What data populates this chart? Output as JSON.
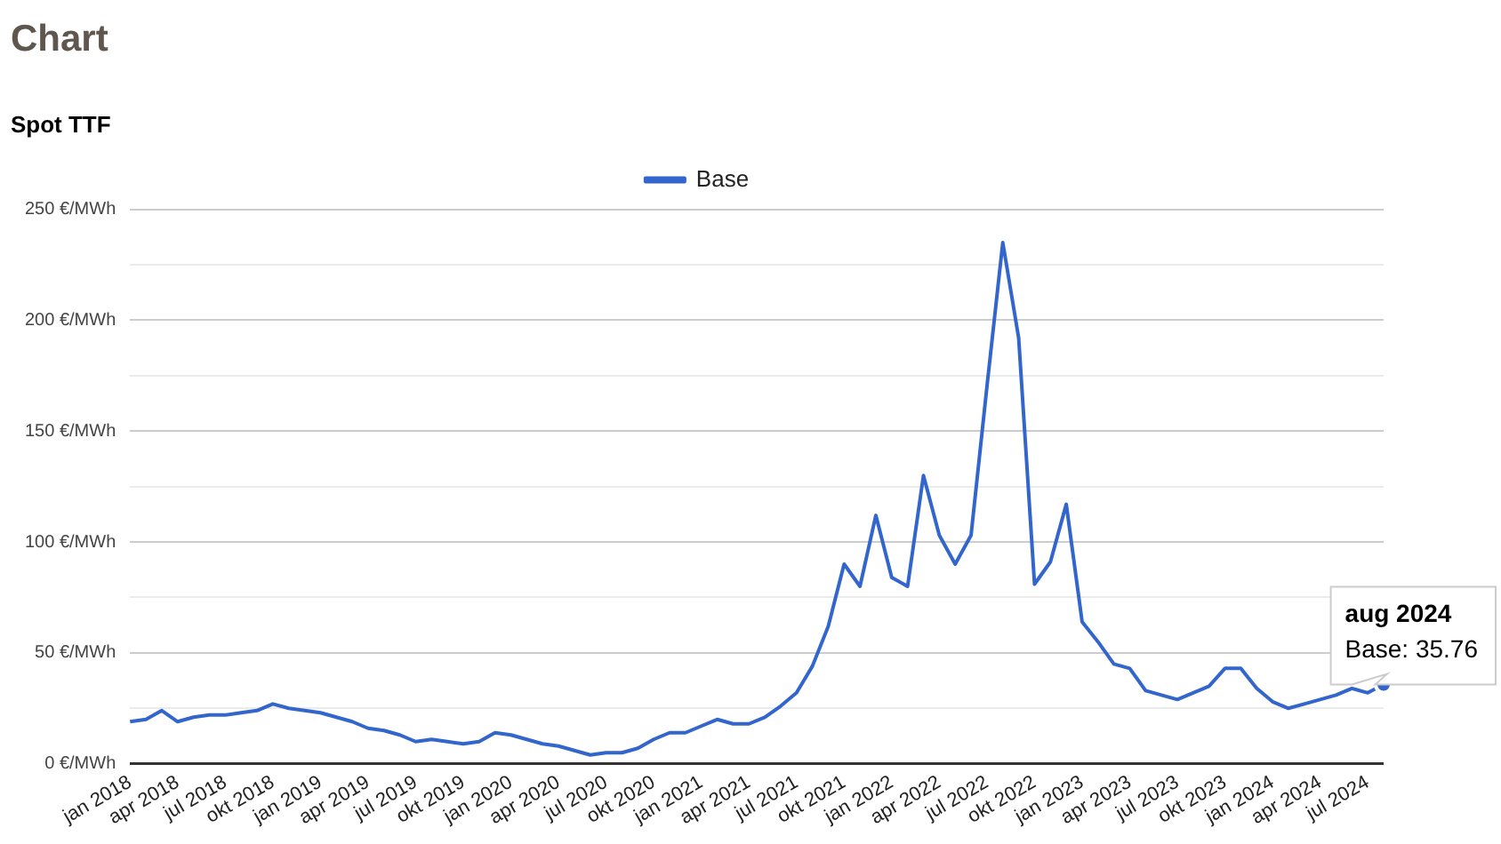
{
  "chart_data": {
    "type": "line",
    "title": "Chart",
    "subtitle": "Spot TTF",
    "categories": [
      "jan 2018",
      null,
      null,
      "apr 2018",
      null,
      null,
      "jul 2018",
      null,
      null,
      "okt 2018",
      null,
      null,
      "jan 2019",
      null,
      null,
      "apr 2019",
      null,
      null,
      "jul 2019",
      null,
      null,
      "okt 2019",
      null,
      null,
      "jan 2020",
      null,
      null,
      "apr 2020",
      null,
      null,
      "jul 2020",
      null,
      null,
      "okt 2020",
      null,
      null,
      "jan 2021",
      null,
      null,
      "apr 2021",
      null,
      null,
      "jul 2021",
      null,
      null,
      "okt 2021",
      null,
      null,
      "jan 2022",
      null,
      null,
      "apr 2022",
      null,
      null,
      "jul 2022",
      null,
      null,
      "okt 2022",
      null,
      null,
      "jan 2023",
      null,
      null,
      "apr 2023",
      null,
      null,
      "jul 2023",
      null,
      null,
      "okt 2023",
      null,
      null,
      "jan 2024",
      null,
      null,
      "apr 2024",
      null,
      null,
      "jul 2024",
      null
    ],
    "series": [
      {
        "name": "Base",
        "color": "#3366cc",
        "values": [
          19,
          20,
          24,
          19,
          21,
          22,
          22,
          23,
          24,
          27,
          25,
          24,
          23,
          21,
          19,
          16,
          15,
          13,
          10,
          11,
          10,
          9,
          10,
          14,
          13,
          11,
          9,
          8,
          6,
          4,
          5,
          5,
          7,
          11,
          14,
          14,
          17,
          20,
          18,
          18,
          21,
          26,
          32,
          44,
          62,
          90,
          80,
          112,
          84,
          80,
          130,
          103,
          90,
          103,
          170,
          235,
          192,
          81,
          91,
          117,
          64,
          55,
          45,
          43,
          33,
          31,
          29,
          32,
          35,
          43,
          43,
          34,
          28,
          25,
          27,
          29,
          31,
          34,
          32,
          35.76
        ]
      }
    ],
    "ylim": [
      0,
      250
    ],
    "yticks": [
      {
        "value": 0,
        "label": "0 €/MWh"
      },
      {
        "value": 25,
        "label": null
      },
      {
        "value": 50,
        "label": "50 €/MWh"
      },
      {
        "value": 75,
        "label": null
      },
      {
        "value": 100,
        "label": "100 €/MWh"
      },
      {
        "value": 125,
        "label": null
      },
      {
        "value": 150,
        "label": "150 €/MWh"
      },
      {
        "value": 175,
        "label": null
      },
      {
        "value": 200,
        "label": "200 €/MWh"
      },
      {
        "value": 225,
        "label": null
      },
      {
        "value": 250,
        "label": "250 €/MWh"
      }
    ],
    "grid": "y",
    "legend": "top",
    "marker": "none",
    "line_style": "solid",
    "annotations": [
      "aug 2024\nBase: 35.76"
    ]
  }
}
